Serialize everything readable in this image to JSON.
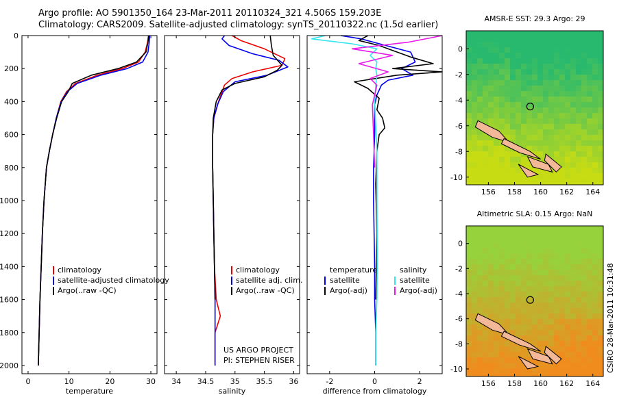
{
  "header": {
    "line1": "Argo profile: AO 5901350_164 23-Mar-2011 20110324_321 4.506S 159.203E",
    "line2": "Climatology: CARS2009. Satellite-adjusted climatology: synTS_20110322.nc (1.5d earlier)"
  },
  "side_label": "CSIRO 28-Mar-2011 10:31:48",
  "colors": {
    "climatology": "#ee0000",
    "satellite": "#0000ee",
    "argo": "#000000",
    "sal_satellite": "#33e6f2",
    "sal_argo": "#e81ce8"
  },
  "chart_data": [
    {
      "type": "line",
      "xlabel": "temperature",
      "xlim": [
        -1.5,
        31.5
      ],
      "ylim": [
        0,
        2050
      ],
      "xticks": [
        "0",
        "10",
        "20",
        "30"
      ],
      "xtick_values": [
        0,
        10,
        20,
        30
      ],
      "yticks": [
        "0",
        "200",
        "400",
        "600",
        "800",
        "1000",
        "1200",
        "1400",
        "1600",
        "1800",
        "2000"
      ],
      "ytick_values": [
        0,
        200,
        400,
        600,
        800,
        1000,
        1200,
        1400,
        1600,
        1800,
        2000
      ],
      "legend": [
        "climatology",
        "satellite-adjusted climatology",
        "Argo(..raw -QC)"
      ],
      "series": [
        {
          "name": "climatology",
          "color": "#ee0000",
          "x": [
            29.4,
            29.2,
            28.6,
            27.0,
            23.0,
            17.0,
            11.6,
            9.4,
            8.0,
            6.9,
            6.0,
            5.2,
            4.5,
            3.9,
            3.5,
            3.2,
            2.9,
            2.7,
            2.5
          ],
          "y": [
            0,
            40,
            100,
            160,
            200,
            240,
            290,
            340,
            400,
            500,
            600,
            700,
            800,
            1000,
            1200,
            1400,
            1600,
            1800,
            2000
          ]
        },
        {
          "name": "satellite-adjusted climatology",
          "color": "#0000ee",
          "x": [
            29.7,
            29.6,
            29.3,
            28.0,
            24.2,
            17.8,
            12.0,
            9.6,
            8.1,
            6.9,
            6.0,
            5.2,
            4.5,
            3.9,
            3.5,
            3.2,
            2.9,
            2.7,
            2.5
          ],
          "y": [
            0,
            40,
            100,
            160,
            200,
            240,
            290,
            340,
            400,
            500,
            600,
            700,
            800,
            1000,
            1200,
            1400,
            1600,
            1800,
            2000
          ]
        },
        {
          "name": "Argo(..raw -QC)",
          "color": "#000000",
          "x": [
            29.5,
            29.3,
            28.8,
            26.5,
            22.0,
            15.5,
            10.8,
            9.8,
            8.2,
            7.0,
            6.0,
            5.2,
            4.5,
            3.9,
            3.5,
            3.2,
            2.9,
            2.7,
            2.5
          ],
          "y": [
            0,
            40,
            100,
            160,
            200,
            240,
            290,
            340,
            400,
            500,
            600,
            700,
            800,
            1000,
            1200,
            1400,
            1600,
            1800,
            2000
          ]
        }
      ]
    },
    {
      "type": "line",
      "xlabel": "salinity",
      "xlim": [
        33.8,
        36.1
      ],
      "ylim": [
        0,
        2050
      ],
      "xticks": [
        "34",
        "34.5",
        "35",
        "35.5",
        "36"
      ],
      "xtick_values": [
        34,
        34.5,
        35,
        35.5,
        36
      ],
      "legend": [
        "climatology",
        "satellite adj. clim.",
        "Argo(..raw -QC)"
      ],
      "annotation": [
        "US ARGO PROJECT",
        "PI: STEPHEN RISER"
      ],
      "series": [
        {
          "name": "climatology",
          "color": "#ee0000",
          "x": [
            34.95,
            35.1,
            35.5,
            35.85,
            35.8,
            35.3,
            34.95,
            34.82,
            34.72,
            34.64,
            34.62,
            34.62,
            34.62,
            34.63,
            34.64,
            34.65,
            34.68,
            34.75,
            34.66,
            34.66
          ],
          "y": [
            0,
            30,
            80,
            140,
            180,
            220,
            260,
            300,
            400,
            500,
            600,
            700,
            800,
            1000,
            1200,
            1400,
            1600,
            1700,
            1800,
            2000
          ]
        },
        {
          "name": "satellite adj. clim.",
          "color": "#0000ee",
          "x": [
            34.82,
            34.78,
            34.9,
            35.3,
            35.75,
            35.9,
            35.55,
            35.0,
            34.8,
            34.7,
            34.64,
            34.62,
            34.62,
            34.62,
            34.63,
            34.64,
            34.65,
            34.66,
            34.66,
            34.66
          ],
          "y": [
            0,
            20,
            60,
            110,
            150,
            190,
            240,
            280,
            340,
            420,
            500,
            600,
            700,
            800,
            1000,
            1200,
            1400,
            1600,
            1800,
            2000
          ]
        },
        {
          "name": "Argo(..raw -QC)",
          "color": "#000000",
          "x": [
            35.6,
            35.62,
            35.65,
            35.8,
            35.72,
            35.5,
            35.0,
            34.78,
            34.68,
            34.63,
            34.62,
            34.62,
            34.62,
            34.63,
            34.64,
            34.65,
            34.66
          ],
          "y": [
            0,
            60,
            120,
            180,
            210,
            250,
            290,
            330,
            400,
            500,
            600,
            700,
            800,
            1000,
            1200,
            1400,
            1600
          ]
        }
      ]
    },
    {
      "type": "line",
      "xlabel": "difference from climatology",
      "xlim": [
        -3,
        3
      ],
      "ylim": [
        0,
        2050
      ],
      "xticks": [
        "-2",
        "0",
        "2"
      ],
      "xtick_values": [
        -2,
        0,
        2
      ],
      "legend_headers": [
        "temperature",
        "salinity"
      ],
      "legend": [
        "satellite",
        "Argo(-adj)",
        "satellite",
        "Argo(-adj)"
      ],
      "series": [
        {
          "name": "satellite",
          "color": "#0000ee",
          "x": [
            -1.5,
            -0.6,
            0.5,
            1.6,
            1.8,
            1.2,
            1.7,
            0.6,
            0.3,
            0.1,
            0.0,
            0.0,
            0.0,
            -0.05,
            -0.05,
            0.0,
            0.0,
            0.05,
            0.05
          ],
          "y": [
            0,
            20,
            60,
            100,
            160,
            200,
            240,
            270,
            300,
            360,
            420,
            500,
            600,
            800,
            1000,
            1400,
            1600,
            1800,
            2000
          ]
        },
        {
          "name": "Argo(-adj)",
          "color": "#000000",
          "x": [
            -0.3,
            -0.7,
            0.2,
            0.8,
            1.6,
            2.6,
            0.8,
            3.0,
            1.0,
            -0.9,
            -0.3,
            0.2,
            0.1,
            0.35,
            0.45,
            0.2,
            0.1,
            0.05,
            0.1,
            0.05
          ],
          "y": [
            0,
            30,
            60,
            90,
            130,
            170,
            200,
            220,
            240,
            280,
            320,
            380,
            450,
            500,
            560,
            600,
            700,
            900,
            1200,
            1600
          ]
        },
        {
          "name": "satellite",
          "color": "#33e6f2",
          "x": [
            -2.2,
            -2.8,
            -1.0,
            0.1,
            -0.2,
            0.1,
            0.05,
            0.1,
            0.05,
            0.0,
            0.1,
            0.1,
            0.12,
            0.1,
            0.05,
            0.05
          ],
          "y": [
            0,
            20,
            50,
            80,
            120,
            160,
            200,
            240,
            300,
            400,
            700,
            1000,
            1300,
            1600,
            1800,
            2000
          ]
        },
        {
          "name": "Argo(-adj)",
          "color": "#e81ce8",
          "x": [
            3.0,
            1.5,
            -1.0,
            0.8,
            -0.7,
            0.6,
            -0.2,
            0.1,
            0.0,
            -0.1,
            -0.05,
            0.0
          ],
          "y": [
            0,
            40,
            80,
            120,
            170,
            220,
            260,
            300,
            360,
            420,
            600,
            800
          ]
        }
      ]
    },
    {
      "type": "heatmap",
      "title": "AMSR-E SST: 29.3 Argo: 29",
      "xticks": [
        "156",
        "158",
        "160",
        "162",
        "164"
      ],
      "xtick_values": [
        156,
        158,
        160,
        162,
        164
      ],
      "yticks": [
        "0",
        "-2",
        "-4",
        "-6",
        "-8",
        "-10"
      ],
      "ytick_values": [
        0,
        -2,
        -4,
        -6,
        -8,
        -10
      ],
      "xlim": [
        154.3,
        164.8
      ],
      "ylim": [
        -10.6,
        1.4
      ],
      "marker": [
        159.2,
        -4.5
      ]
    },
    {
      "type": "heatmap",
      "title": "Altimetric SLA: 0.15 Argo: NaN",
      "xticks": [
        "156",
        "158",
        "160",
        "162",
        "164"
      ],
      "xtick_values": [
        156,
        158,
        160,
        162,
        164
      ],
      "yticks": [
        "0",
        "-2",
        "-4",
        "-6",
        "-8",
        "-10"
      ],
      "ytick_values": [
        0,
        -2,
        -4,
        -6,
        -8,
        -10
      ],
      "xlim": [
        154.3,
        164.8
      ],
      "ylim": [
        -10.6,
        1.4
      ],
      "marker": [
        159.2,
        -4.5
      ]
    }
  ]
}
